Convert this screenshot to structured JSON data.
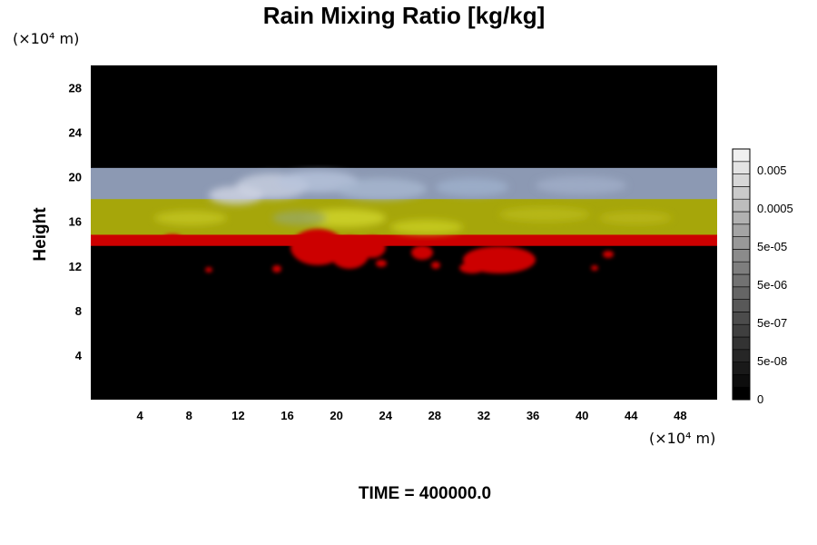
{
  "chart_data": {
    "type": "heatmap",
    "title": "Rain Mixing Ratio [kg/kg]",
    "xlabel": "",
    "ylabel": "Height",
    "x_unit": "(×10⁴ m)",
    "y_unit": "(×10⁴ m)",
    "xlim": [
      0,
      51
    ],
    "ylim": [
      0,
      30
    ],
    "x_ticks": [
      4,
      8,
      12,
      16,
      20,
      24,
      28,
      32,
      36,
      40,
      44,
      48
    ],
    "y_ticks": [
      4,
      8,
      12,
      16,
      20,
      24,
      28
    ],
    "colorbar": {
      "scale": "log",
      "tick_labels": [
        "0",
        "5e-08",
        "5e-07",
        "5e-06",
        "5e-05",
        "0.0005",
        "0.005"
      ],
      "levels": 20
    },
    "bands": [
      {
        "layer": "red",
        "color": "#cc0000",
        "y_range": [
          13.8,
          15.0
        ]
      },
      {
        "layer": "yellow",
        "color": "#a6a60a",
        "y_range": [
          14.8,
          18.2
        ]
      },
      {
        "layer": "bluish-gray",
        "color": "#8c99b3",
        "y_range": [
          18.0,
          20.8
        ]
      }
    ],
    "footer": "TIME = 400000.0"
  },
  "colors": {
    "background": "#000000",
    "red": "#cc0000",
    "yellow": "#a6a60a",
    "gray": "#8c99b3"
  }
}
